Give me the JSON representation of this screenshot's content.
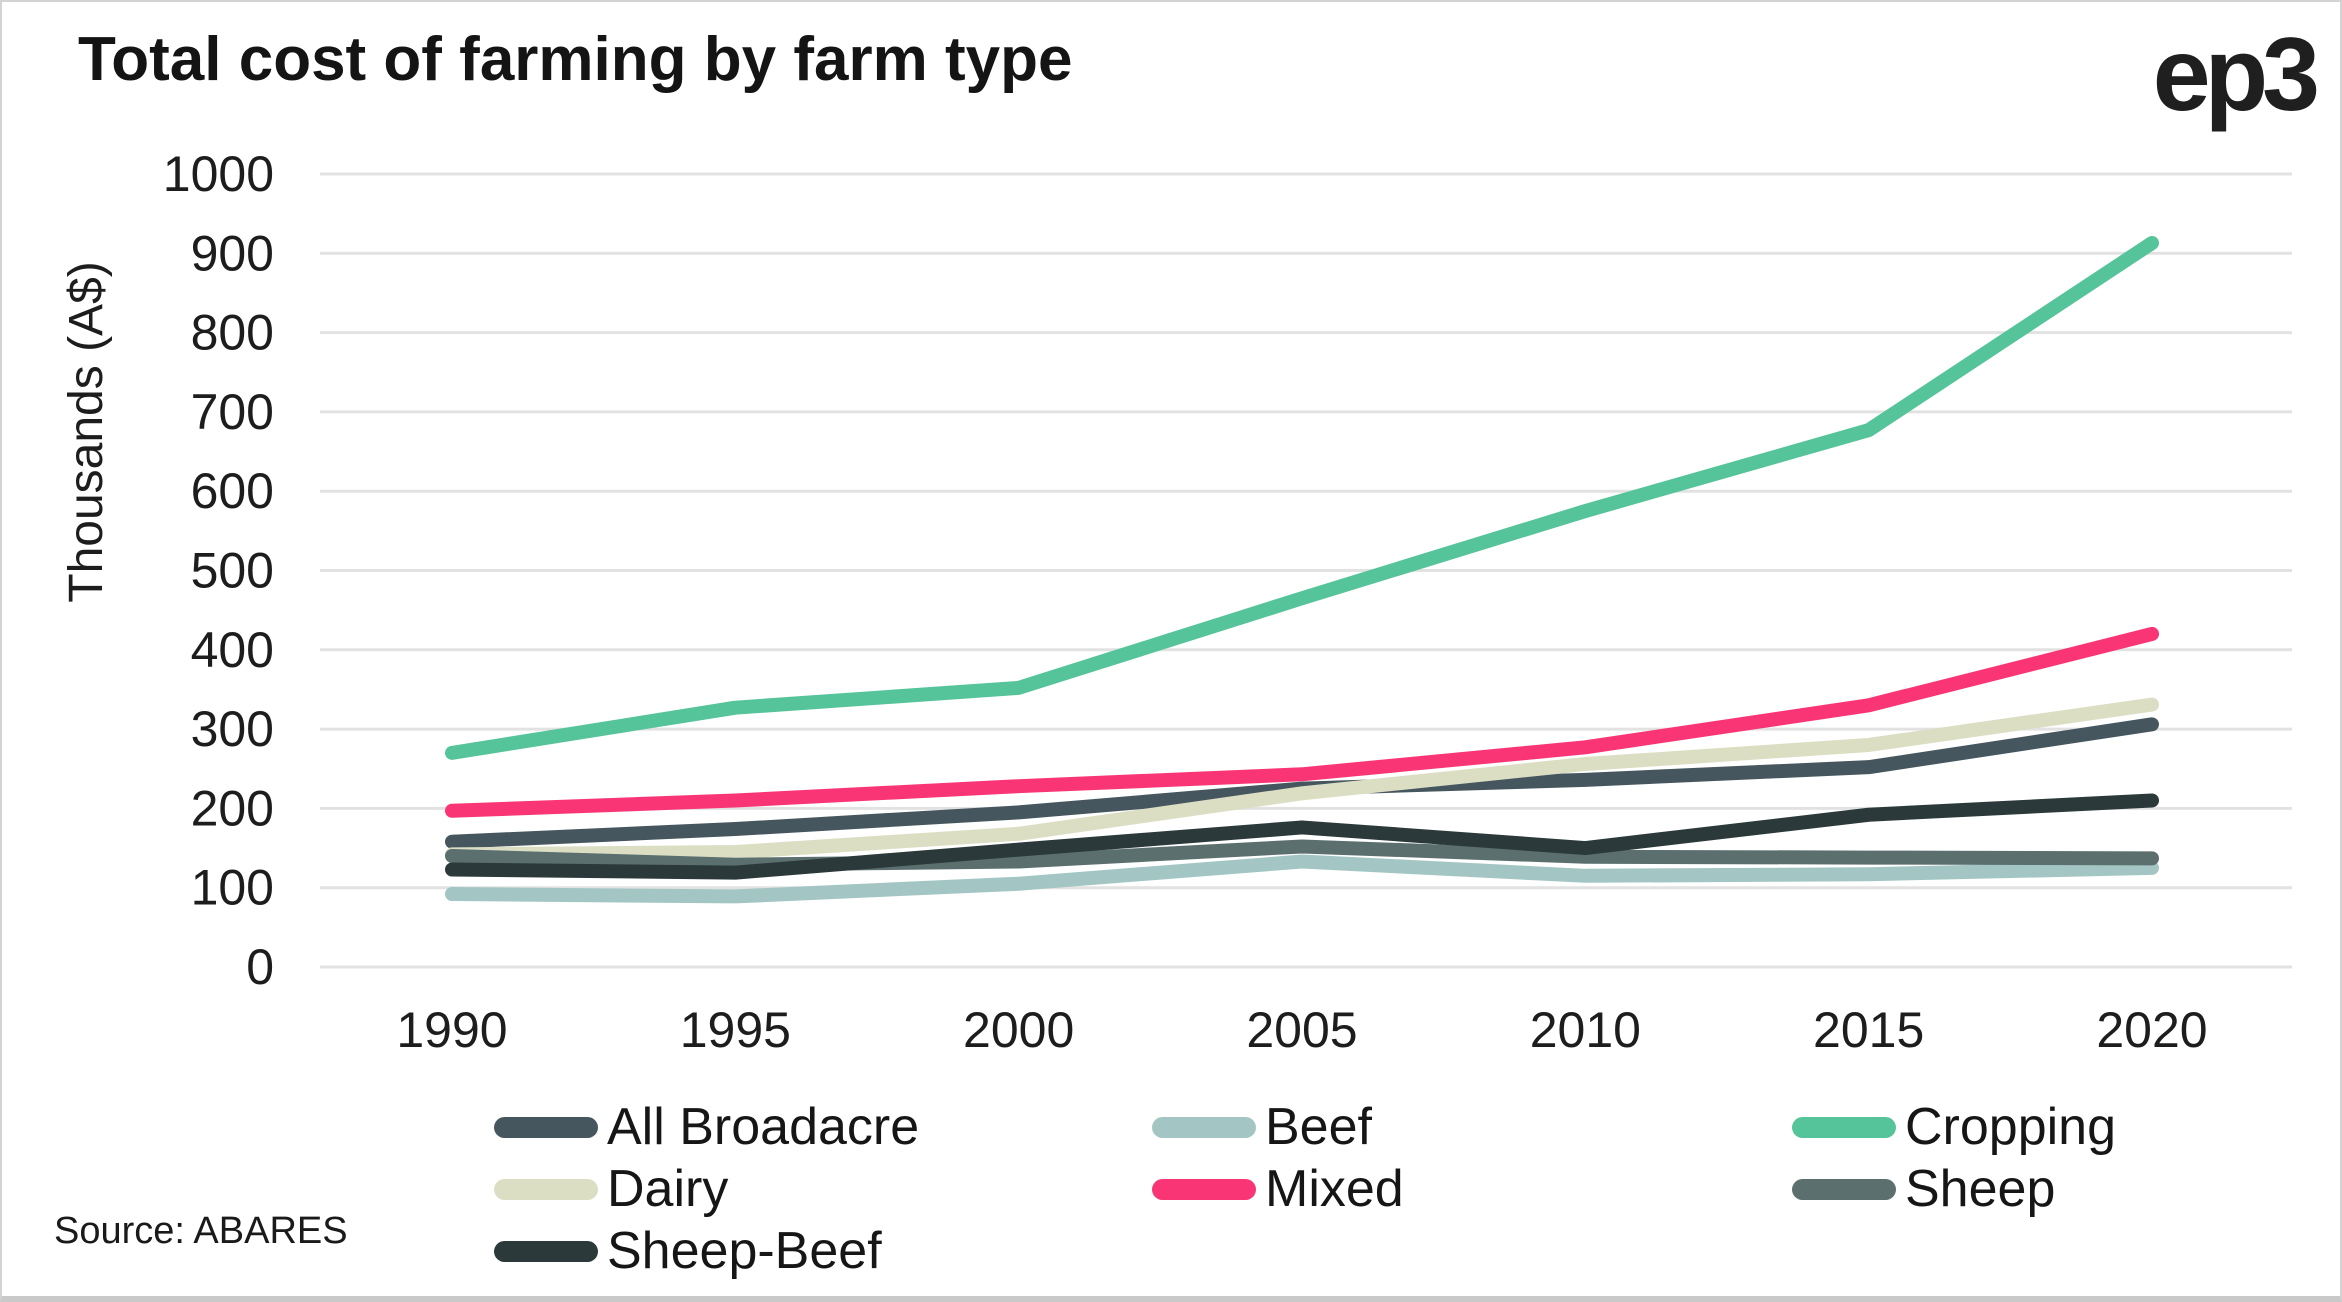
{
  "title": "Total cost of farming by farm type",
  "logo": "ep3",
  "source": "Source: ABARES",
  "theme": {
    "grid_color": "#e2e2e2",
    "text_color": "#1d1d1d",
    "background": "#ffffff"
  },
  "y_axis": {
    "label": "Thousands (A$)",
    "ticks": [
      0,
      100,
      200,
      300,
      400,
      500,
      600,
      700,
      800,
      900,
      1000
    ]
  },
  "x_axis": {
    "ticks": [
      "1990",
      "1995",
      "2000",
      "2005",
      "2010",
      "2015",
      "2020"
    ]
  },
  "chart_data": {
    "type": "line",
    "title": "Total cost of farming by farm type",
    "ylabel": "Thousands (A$)",
    "xlabel": "",
    "ylim": [
      0,
      1000
    ],
    "grid": true,
    "legend_position": "bottom",
    "x": [
      1990,
      1995,
      2000,
      2005,
      2010,
      2015,
      2020
    ],
    "series": [
      {
        "name": "All Broadacre",
        "color": "#46565e",
        "values": [
          158,
          174,
          195,
          225,
          236,
          252,
          306
        ]
      },
      {
        "name": "Beef",
        "color": "#a3c6c4",
        "values": [
          92,
          89,
          105,
          133,
          115,
          117,
          125
        ]
      },
      {
        "name": "Cropping",
        "color": "#55c49a",
        "values": [
          270,
          327,
          352,
          465,
          575,
          677,
          913
        ]
      },
      {
        "name": "Dairy",
        "color": "#dcdec4",
        "values": [
          142,
          145,
          168,
          219,
          256,
          280,
          331
        ]
      },
      {
        "name": "Mixed",
        "color": "#f93576",
        "values": [
          197,
          210,
          228,
          243,
          277,
          330,
          420
        ]
      },
      {
        "name": "Sheep",
        "color": "#5c6f6f",
        "values": [
          140,
          129,
          133,
          152,
          139,
          138,
          137
        ]
      },
      {
        "name": "Sheep-Beef",
        "color": "#2b393b",
        "values": [
          123,
          119,
          148,
          176,
          150,
          192,
          210
        ]
      }
    ]
  }
}
